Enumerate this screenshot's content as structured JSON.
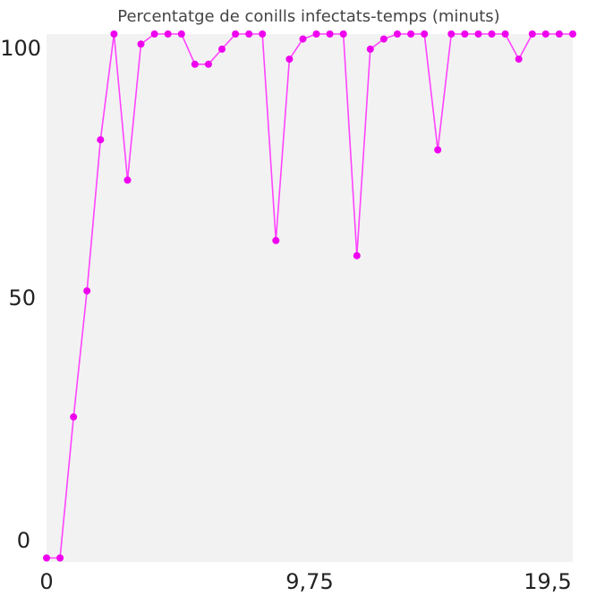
{
  "chart_data": {
    "type": "line",
    "title": "Percentatge de conills infectats-temps (minuts)",
    "xlabel": "",
    "ylabel": "",
    "xlim": [
      0,
      19.5
    ],
    "ylim": [
      0,
      100
    ],
    "x_ticks": [
      "0",
      "9,75",
      "19,5"
    ],
    "y_ticks": [
      "0",
      "50",
      "100"
    ],
    "grid": false,
    "series": [
      {
        "color": "#ff44ff",
        "marker_color": "#ee00ee",
        "x": [
          0,
          0.5,
          1,
          1.5,
          2,
          2.5,
          3,
          3.5,
          4,
          4.5,
          5,
          5.5,
          6,
          6.5,
          7,
          7.5,
          8,
          8.5,
          9,
          9.5,
          10,
          10.5,
          11,
          11.5,
          12,
          12.5,
          13,
          13.5,
          14,
          14.5,
          15,
          15.5,
          16,
          16.5,
          17,
          17.5,
          18,
          18.5,
          19,
          19.5
        ],
        "y": [
          -4,
          -4,
          24,
          49,
          79,
          100,
          71,
          98,
          100,
          100,
          100,
          94,
          94,
          97,
          100,
          100,
          100,
          59,
          95,
          99,
          100,
          100,
          100,
          56,
          97,
          99,
          100,
          100,
          100,
          77,
          100,
          100,
          100,
          100,
          100,
          95,
          100,
          100,
          100,
          100
        ]
      }
    ]
  }
}
